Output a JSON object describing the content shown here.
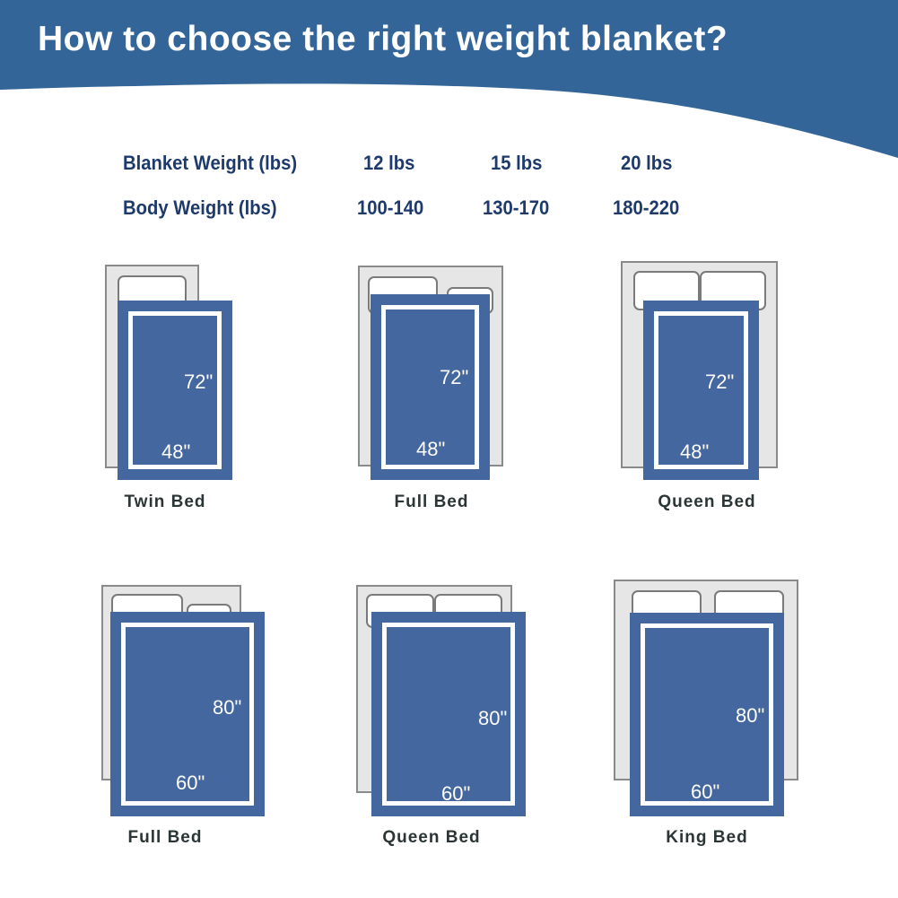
{
  "title": "How to choose the right weight blanket?",
  "colors": {
    "header": "#346598",
    "blanket": "#4467a0",
    "text": "#1d3a6b"
  },
  "table": {
    "blanket_weight": {
      "label": "Blanket Weight (lbs)",
      "values": [
        "12 lbs",
        "15 lbs",
        "20 lbs"
      ]
    },
    "body_weight": {
      "label": "Body Weight (lbs)",
      "values": [
        "100-140",
        "130-170",
        "180-220"
      ]
    }
  },
  "beds": [
    {
      "name": "Twin Bed",
      "length": "72\"",
      "width": "48\""
    },
    {
      "name": "Full Bed",
      "length": "72\"",
      "width": "48\""
    },
    {
      "name": "Queen Bed",
      "length": "72\"",
      "width": "48\""
    },
    {
      "name": "Full Bed",
      "length": "80\"",
      "width": "60\""
    },
    {
      "name": "Queen Bed",
      "length": "80\"",
      "width": "60\""
    },
    {
      "name": "King Bed",
      "length": "80\"",
      "width": "60\""
    }
  ]
}
